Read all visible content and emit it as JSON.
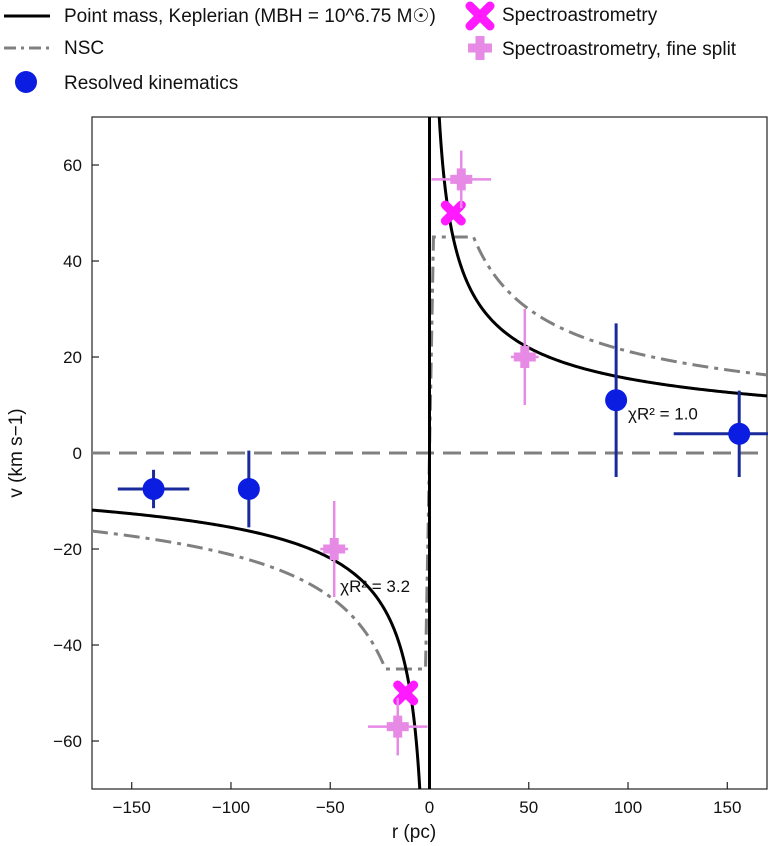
{
  "chart_data": {
    "type": "scatter",
    "xlabel": "r (pc)",
    "ylabel": "v (km s−1)",
    "xlim": [
      -170,
      170
    ],
    "ylim": [
      -70,
      70
    ],
    "x_ticks": [
      -150,
      -100,
      -50,
      0,
      50,
      100,
      150
    ],
    "x_tick_labels": [
      "−150",
      "−100",
      "−50",
      "0",
      "50",
      "100",
      "150"
    ],
    "y_ticks": [
      -60,
      -40,
      -20,
      0,
      20,
      40,
      60
    ],
    "y_tick_labels": [
      "−60",
      "−40",
      "−20",
      "0",
      "20",
      "40",
      "60"
    ],
    "grid": false,
    "legend_position": "top (above plot)",
    "legend": [
      {
        "label": "Point mass, Keplerian (MBH = 10^6.75 M☉)",
        "marker": "line",
        "color": "#000000"
      },
      {
        "label": "NSC",
        "marker": "dashdot",
        "color": "#808080"
      },
      {
        "label": "Resolved kinematics",
        "marker": "circle",
        "color": "#0a1de0"
      },
      {
        "label": "Spectroastrometry",
        "marker": "x",
        "color": "#ff1aff"
      },
      {
        "label": "Spectroastrometry, fine split",
        "marker": "plus",
        "color": "#e68ae6"
      }
    ],
    "series": [
      {
        "name": "Resolved kinematics",
        "color": "#0a1de0",
        "errcolor": "#1a2a9a",
        "points": [
          {
            "x": -139,
            "y": -7.5,
            "xerr": 18,
            "yerr": 4
          },
          {
            "x": -91,
            "y": -7.5,
            "xerr": 0,
            "yerr": 8
          },
          {
            "x": 94,
            "y": 11,
            "xerr": 0,
            "yerr": 16
          },
          {
            "x": 156,
            "y": 4,
            "xerr": 33,
            "yerr": 9
          }
        ]
      },
      {
        "name": "Spectroastrometry",
        "color": "#ff1aff",
        "points": [
          {
            "x": 12,
            "y": 50
          },
          {
            "x": -12,
            "y": -50
          }
        ]
      },
      {
        "name": "Spectroastrometry, fine split",
        "color": "#e68ae6",
        "points": [
          {
            "x": 16,
            "y": 57,
            "xerr": 15,
            "yerr": 6
          },
          {
            "x": 48,
            "y": 20,
            "xerr": 7,
            "yerr": 10
          },
          {
            "x": -48,
            "y": -20,
            "xerr": 7,
            "yerr": 10
          },
          {
            "x": -16,
            "y": -57,
            "xerr": 15,
            "yerr": 6
          }
        ]
      }
    ],
    "models": {
      "keplerian": {
        "name": "Point mass, Keplerian",
        "coefficient": 155,
        "color": "#000000"
      },
      "nsc": {
        "name": "NSC",
        "coefficient": 212,
        "vmax": 45,
        "rcore": 2,
        "color": "#808080"
      },
      "zero_line": {
        "y": 0,
        "color": "#808080"
      }
    },
    "annotations": [
      {
        "text": "χR² = 1.0",
        "x": 100,
        "y": 7
      },
      {
        "text": "χR² = 3.2",
        "x": -45,
        "y": -29
      }
    ]
  }
}
